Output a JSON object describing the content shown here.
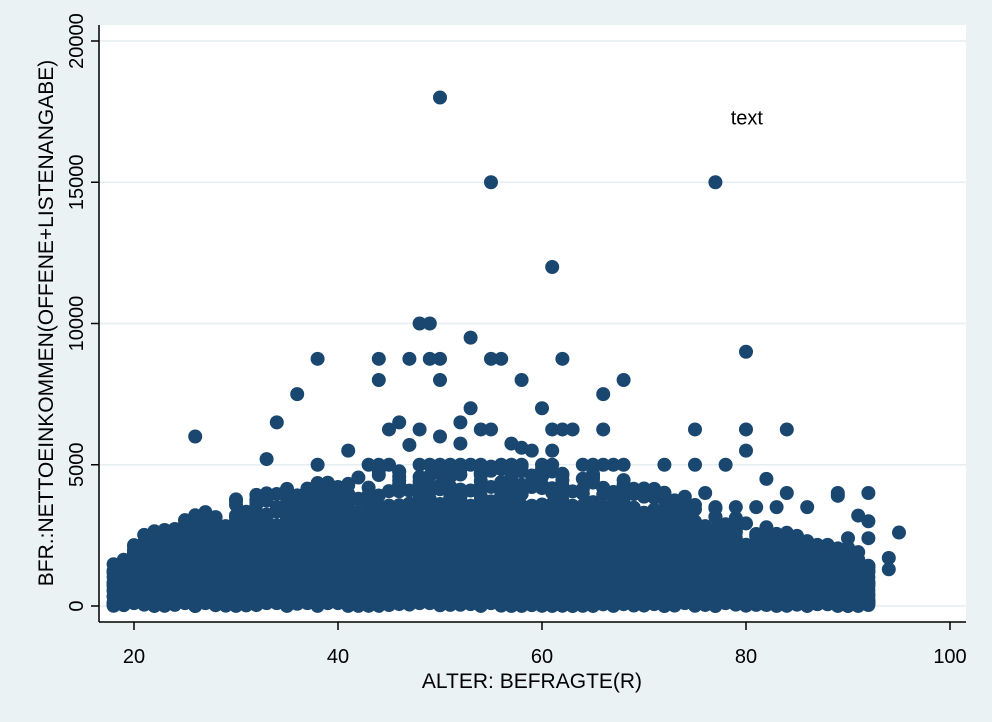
{
  "chart_data": {
    "type": "scatter",
    "title": "",
    "xlabel": "ALTER: BEFRAGTE(R)",
    "ylabel": "BFR.:NETTOEINKOMMEN(OFFENE+LISTENANGABE)",
    "xlim": [
      18,
      100
    ],
    "ylim": [
      0,
      20000
    ],
    "xticks": [
      20,
      40,
      60,
      80,
      100
    ],
    "yticks": [
      0,
      5000,
      10000,
      15000,
      20000
    ],
    "x_tick_labels": [
      "20",
      "40",
      "60",
      "80",
      "100"
    ],
    "y_tick_labels": [
      "0",
      "5000",
      "10000",
      "15000",
      "20000"
    ],
    "grid": true,
    "legend": "none",
    "marker_color": "#1a476f",
    "plot_background": "#ffffff",
    "page_background": "#eaf2f3",
    "annotation": {
      "text": "text",
      "x": 78.5,
      "y": 17300
    },
    "dense_cloud": {
      "x_range": [
        18,
        92
      ],
      "y_floor": 0,
      "y_ceiling_profile": [
        [
          18,
          2100
        ],
        [
          22,
          2700
        ],
        [
          26,
          3300
        ],
        [
          30,
          3800
        ],
        [
          35,
          4200
        ],
        [
          40,
          4500
        ],
        [
          45,
          5000
        ],
        [
          50,
          5000
        ],
        [
          55,
          5000
        ],
        [
          60,
          5000
        ],
        [
          65,
          4700
        ],
        [
          70,
          4300
        ],
        [
          75,
          3800
        ],
        [
          80,
          3000
        ],
        [
          85,
          2500
        ],
        [
          90,
          2100
        ],
        [
          92,
          1900
        ]
      ],
      "note_points": 1800
    },
    "points": [
      [
        50,
        18000
      ],
      [
        55,
        15000
      ],
      [
        77,
        15000
      ],
      [
        61,
        12000
      ],
      [
        48,
        10000
      ],
      [
        49,
        10000
      ],
      [
        53,
        9500
      ],
      [
        80,
        9000
      ],
      [
        38,
        8750
      ],
      [
        44,
        8750
      ],
      [
        47,
        8750
      ],
      [
        49,
        8750
      ],
      [
        50,
        8750
      ],
      [
        55,
        8750
      ],
      [
        56,
        8750
      ],
      [
        62,
        8750
      ],
      [
        44,
        8000
      ],
      [
        50,
        8000
      ],
      [
        58,
        8000
      ],
      [
        68,
        8000
      ],
      [
        36,
        7500
      ],
      [
        66,
        7500
      ],
      [
        53,
        7000
      ],
      [
        60,
        7000
      ],
      [
        34,
        6500
      ],
      [
        46,
        6500
      ],
      [
        52,
        6500
      ],
      [
        26,
        6000
      ],
      [
        45,
        6250
      ],
      [
        48,
        6250
      ],
      [
        50,
        6000
      ],
      [
        54,
        6250
      ],
      [
        55,
        6250
      ],
      [
        61,
        6250
      ],
      [
        62,
        6250
      ],
      [
        63,
        6250
      ],
      [
        66,
        6250
      ],
      [
        75,
        6250
      ],
      [
        80,
        6250
      ],
      [
        84,
        6250
      ],
      [
        47,
        5700
      ],
      [
        52,
        5750
      ],
      [
        57,
        5750
      ],
      [
        58,
        5600
      ],
      [
        59,
        5500
      ],
      [
        61,
        5500
      ],
      [
        80,
        5500
      ],
      [
        41,
        5500
      ],
      [
        33,
        5200
      ],
      [
        38,
        5000
      ],
      [
        43,
        5000
      ],
      [
        44,
        5000
      ],
      [
        45,
        5000
      ],
      [
        48,
        5000
      ],
      [
        49,
        5000
      ],
      [
        50,
        5000
      ],
      [
        51,
        5000
      ],
      [
        52,
        5000
      ],
      [
        53,
        5000
      ],
      [
        54,
        5000
      ],
      [
        56,
        5000
      ],
      [
        57,
        5000
      ],
      [
        58,
        5000
      ],
      [
        60,
        5000
      ],
      [
        61,
        5000
      ],
      [
        64,
        5000
      ],
      [
        65,
        5000
      ],
      [
        66,
        5000
      ],
      [
        67,
        5000
      ],
      [
        68,
        5000
      ],
      [
        72,
        5000
      ],
      [
        75,
        5000
      ],
      [
        78,
        5000
      ],
      [
        71,
        4000
      ],
      [
        72,
        4000
      ],
      [
        70,
        4000
      ],
      [
        68,
        4000
      ],
      [
        73,
        3500
      ],
      [
        74,
        3500
      ],
      [
        76,
        4000
      ],
      [
        77,
        3500
      ],
      [
        79,
        3500
      ],
      [
        81,
        3500
      ],
      [
        82,
        4500
      ],
      [
        83,
        3500
      ],
      [
        84,
        4000
      ],
      [
        86,
        3500
      ],
      [
        89,
        3900
      ],
      [
        92,
        4000
      ],
      [
        89,
        4000
      ],
      [
        91,
        3200
      ],
      [
        92,
        3000
      ],
      [
        90,
        2400
      ],
      [
        92,
        2400
      ],
      [
        94,
        1700
      ],
      [
        94,
        1300
      ],
      [
        95,
        2600
      ],
      [
        92,
        1200
      ],
      [
        92,
        800
      ],
      [
        88,
        400
      ],
      [
        87,
        400
      ],
      [
        85,
        300
      ],
      [
        82,
        200
      ],
      [
        80,
        100
      ],
      [
        77,
        0
      ]
    ]
  }
}
